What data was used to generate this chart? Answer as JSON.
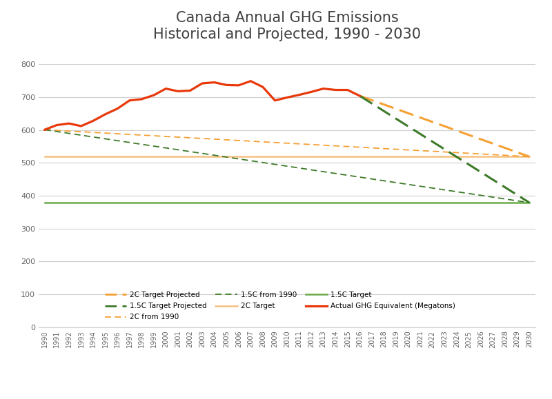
{
  "title": "Canada Annual GHG Emissions\nHistorical and Projected, 1990 - 2030",
  "years_actual": [
    1990,
    1991,
    1992,
    1993,
    1994,
    1995,
    1996,
    1997,
    1998,
    1999,
    2000,
    2001,
    2002,
    2003,
    2004,
    2005,
    2006,
    2007,
    2008,
    2009,
    2010,
    2011,
    2012,
    2013,
    2014,
    2015,
    2016
  ],
  "actual_ghg": [
    601,
    615,
    620,
    612,
    628,
    648,
    665,
    690,
    694,
    706,
    726,
    718,
    720,
    742,
    745,
    737,
    736,
    749,
    731,
    690,
    699,
    707,
    716,
    726,
    722,
    722,
    704
  ],
  "years_2c_from1990": [
    1990,
    2030
  ],
  "vals_2c_from1990": [
    601,
    519
  ],
  "years_15c_from1990": [
    1990,
    2030
  ],
  "vals_15c_from1990": [
    601,
    379
  ],
  "years_2c_proj": [
    2016,
    2030
  ],
  "vals_2c_proj": [
    704,
    519
  ],
  "years_15c_proj": [
    2016,
    2030
  ],
  "vals_15c_proj": [
    704,
    379
  ],
  "years_2c_target": [
    1990,
    2030
  ],
  "vals_2c_target": [
    519,
    519
  ],
  "years_15c_target": [
    1990,
    2030
  ],
  "vals_15c_target": [
    379,
    379
  ],
  "color_actual": "#e8380a",
  "color_2c_proj": "#f5a033",
  "color_15c_proj": "#3d7a28",
  "color_2c_from1990": "#f5a033",
  "color_15c_from1990": "#3d7a28",
  "color_2c_target": "#f5c080",
  "color_15c_target": "#6aaa4a",
  "ylim": [
    0,
    850
  ],
  "yticks": [
    0,
    100,
    200,
    300,
    400,
    500,
    600,
    700,
    800
  ],
  "background_color": "#ffffff",
  "grid_color": "#d0d0d0",
  "title_color": "#404040",
  "title_fontsize": 15
}
